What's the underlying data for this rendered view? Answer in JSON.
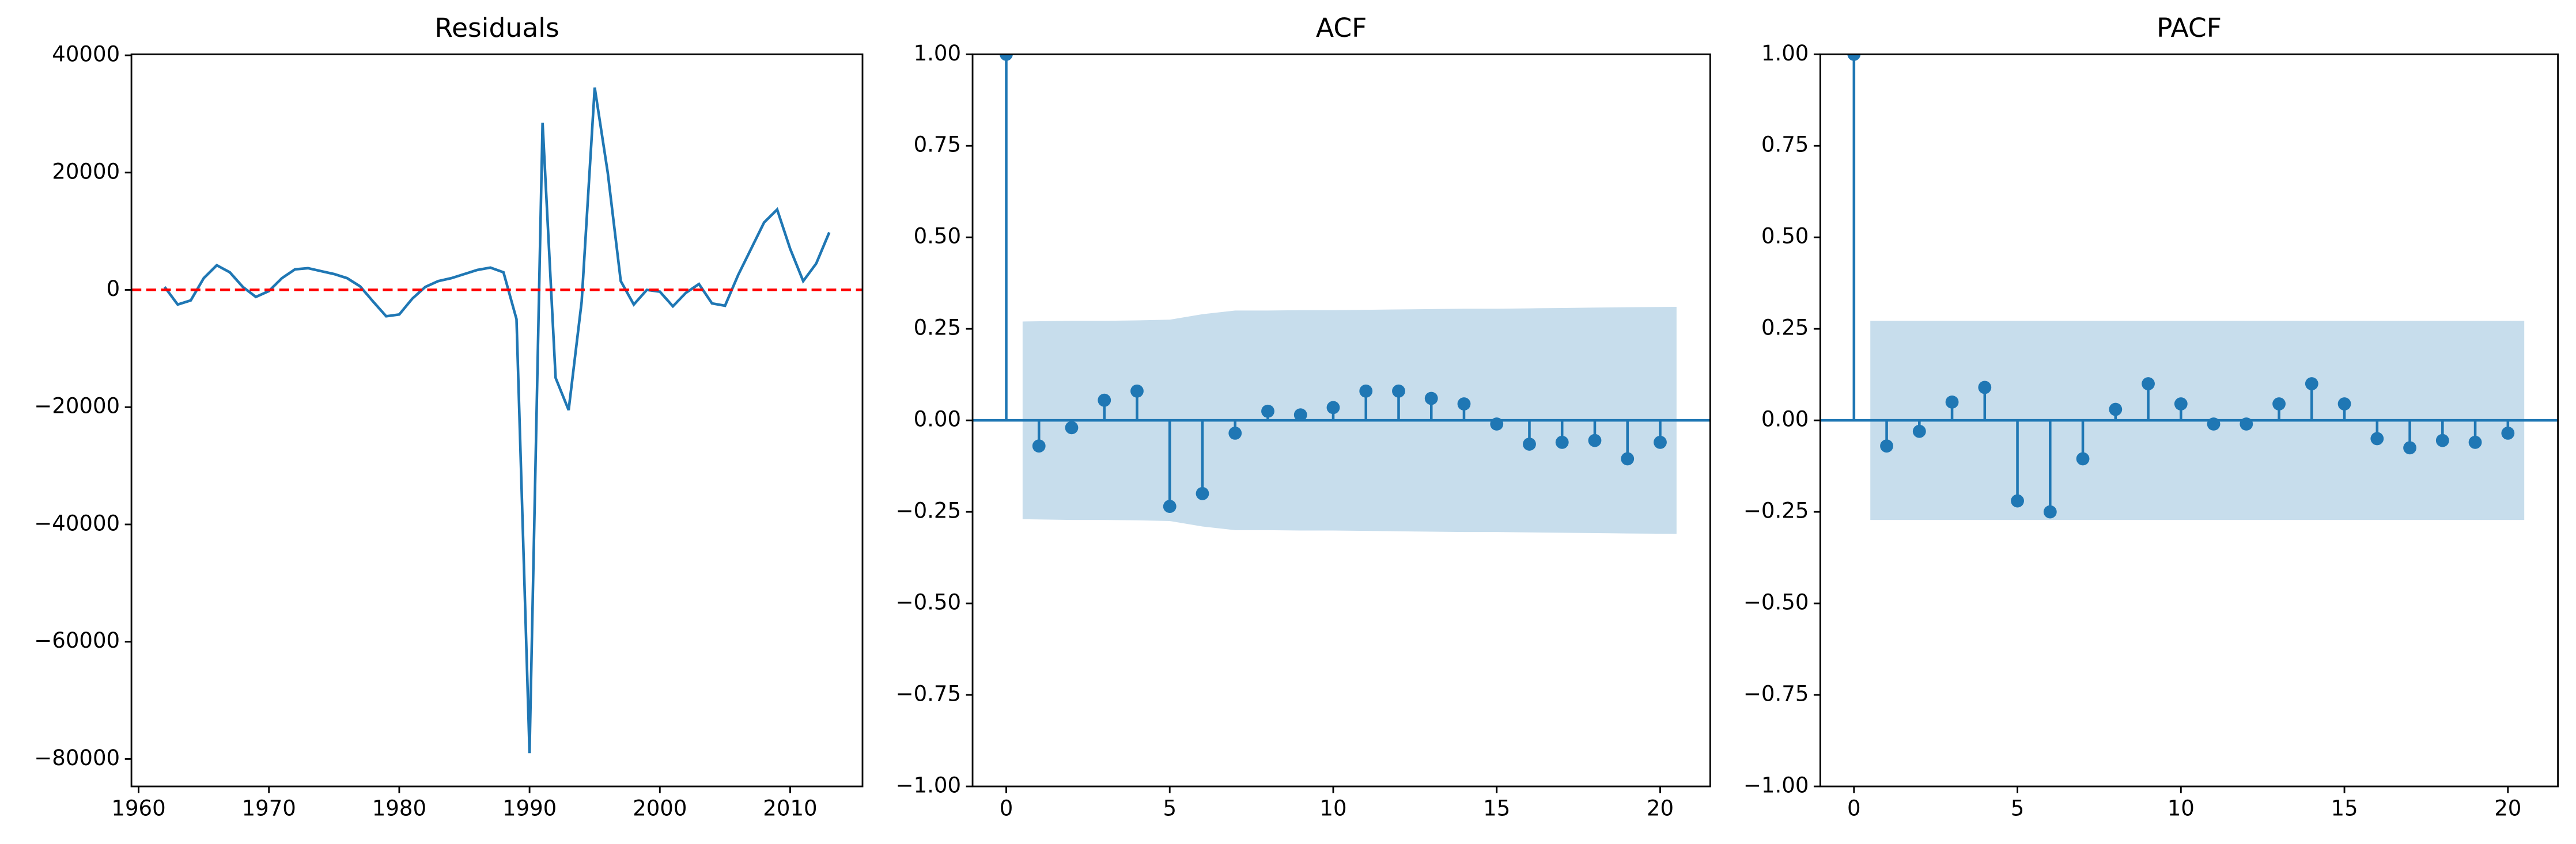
{
  "chart_data": [
    {
      "type": "line",
      "title": "Residuals",
      "x": [
        1962,
        1963,
        1964,
        1965,
        1966,
        1967,
        1968,
        1969,
        1970,
        1971,
        1972,
        1973,
        1974,
        1975,
        1976,
        1977,
        1978,
        1979,
        1980,
        1981,
        1982,
        1983,
        1984,
        1985,
        1986,
        1987,
        1988,
        1989,
        1990,
        1991,
        1992,
        1993,
        1994,
        1995,
        1996,
        1997,
        1998,
        1999,
        2000,
        2001,
        2002,
        2003,
        2004,
        2005,
        2006,
        2007,
        2008,
        2009,
        2010,
        2011,
        2012,
        2013
      ],
      "series": [
        {
          "color": "#1f77b4",
          "values": [
            500,
            -2500,
            -1800,
            2000,
            4200,
            3000,
            500,
            -1200,
            -200,
            2000,
            3500,
            3700,
            3200,
            2700,
            2000,
            600,
            -2000,
            -4500,
            -4200,
            -1500,
            500,
            1500,
            2000,
            2700,
            3400,
            3800,
            3000,
            -5000,
            -79000,
            28500,
            -15000,
            -20500,
            -2000,
            34500,
            20000,
            1500,
            -2500,
            0,
            -300,
            -2800,
            -500,
            1000,
            -2300,
            -2700,
            2500,
            7000,
            11500,
            13700,
            7000,
            1500,
            4500,
            9800
          ]
        }
      ],
      "hline": {
        "value": 0,
        "color": "#ff0000",
        "style": "dashed"
      },
      "xlim": [
        1959.45,
        2015.55
      ],
      "xticks": [
        1960,
        1970,
        1980,
        1990,
        2000,
        2010
      ],
      "ylim": [
        -84675,
        40175
      ],
      "yticks": [
        {
          "value": -80000,
          "label": "−80000"
        },
        {
          "value": -60000,
          "label": "−60000"
        },
        {
          "value": -40000,
          "label": "−40000"
        },
        {
          "value": -20000,
          "label": "−20000"
        },
        0,
        20000,
        40000
      ]
    },
    {
      "type": "stem",
      "title": "ACF",
      "color": "#1f77b4",
      "x": [
        0,
        1,
        2,
        3,
        4,
        5,
        6,
        7,
        8,
        9,
        10,
        11,
        12,
        13,
        14,
        15,
        16,
        17,
        18,
        19,
        20
      ],
      "values": [
        1,
        -0.07,
        -0.02,
        0.055,
        0.08,
        -0.235,
        -0.2,
        -0.035,
        0.025,
        0.015,
        0.035,
        0.08,
        0.08,
        0.06,
        0.045,
        -0.01,
        -0.065,
        -0.06,
        -0.055,
        -0.105,
        -0.06
      ],
      "band_x": [
        0.5,
        2,
        3,
        4,
        5,
        6,
        7,
        8,
        9,
        10,
        11,
        12,
        13,
        14,
        15,
        16,
        17,
        18,
        19,
        20.5
      ],
      "band_upper": [
        0.27,
        0.272,
        0.272,
        0.273,
        0.275,
        0.29,
        0.3,
        0.3,
        0.301,
        0.301,
        0.302,
        0.303,
        0.304,
        0.305,
        0.305,
        0.306,
        0.307,
        0.308,
        0.309,
        0.31
      ],
      "band_lower": [
        -0.27,
        -0.272,
        -0.272,
        -0.273,
        -0.275,
        -0.29,
        -0.3,
        -0.3,
        -0.301,
        -0.301,
        -0.302,
        -0.303,
        -0.304,
        -0.305,
        -0.305,
        -0.306,
        -0.307,
        -0.308,
        -0.309,
        -0.31
      ],
      "xlim": [
        -1.03,
        21.53
      ],
      "xticks": [
        0,
        5,
        10,
        15,
        20
      ],
      "ylim": [
        -1,
        1
      ],
      "yticks": [
        {
          "value": -1,
          "label": "−1.00"
        },
        {
          "value": -0.75,
          "label": "−0.75"
        },
        {
          "value": -0.5,
          "label": "−0.50"
        },
        {
          "value": -0.25,
          "label": "−0.25"
        },
        {
          "value": 0,
          "label": "0.00"
        },
        {
          "value": 0.25,
          "label": "0.25"
        },
        {
          "value": 0.5,
          "label": "0.50"
        },
        {
          "value": 0.75,
          "label": "0.75"
        },
        {
          "value": 1,
          "label": "1.00"
        }
      ]
    },
    {
      "type": "stem",
      "title": "PACF",
      "color": "#1f77b4",
      "x": [
        0,
        1,
        2,
        3,
        4,
        5,
        6,
        7,
        8,
        9,
        10,
        11,
        12,
        13,
        14,
        15,
        16,
        17,
        18,
        19,
        20
      ],
      "values": [
        1,
        -0.07,
        -0.03,
        0.05,
        0.09,
        -0.22,
        -0.25,
        -0.105,
        0.03,
        0.1,
        0.045,
        -0.01,
        -0.01,
        0.045,
        0.1,
        0.045,
        -0.05,
        -0.075,
        -0.055,
        -0.06,
        -0.035
      ],
      "band_x": [
        0.5,
        20.5
      ],
      "band_upper": [
        0.272,
        0.272
      ],
      "band_lower": [
        -0.272,
        -0.272
      ],
      "xlim": [
        -1.03,
        21.53
      ],
      "xticks": [
        0,
        5,
        10,
        15,
        20
      ],
      "ylim": [
        -1,
        1
      ],
      "yticks": [
        {
          "value": -1,
          "label": "−1.00"
        },
        {
          "value": -0.75,
          "label": "−0.75"
        },
        {
          "value": -0.5,
          "label": "−0.50"
        },
        {
          "value": -0.25,
          "label": "−0.25"
        },
        {
          "value": 0,
          "label": "0.00"
        },
        {
          "value": 0.25,
          "label": "0.25"
        },
        {
          "value": 0.5,
          "label": "0.50"
        },
        {
          "value": 0.75,
          "label": "0.75"
        },
        {
          "value": 1,
          "label": "1.00"
        }
      ]
    }
  ]
}
